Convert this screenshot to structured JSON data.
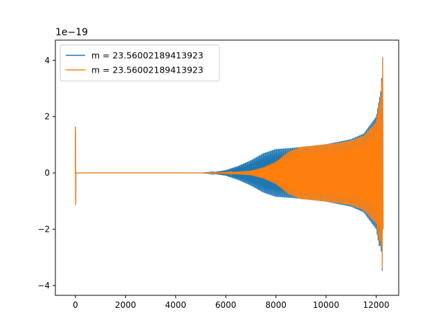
{
  "chart_data": {
    "type": "line",
    "title": "",
    "xlabel": "",
    "ylabel": "",
    "y_scale_label": "1e−19",
    "xlim": [
      -800,
      12900
    ],
    "ylim": [
      -4.35,
      4.72
    ],
    "x_ticks": [
      0,
      2000,
      4000,
      6000,
      8000,
      10000,
      12000
    ],
    "x_tick_labels": [
      "0",
      "2000",
      "4000",
      "6000",
      "8000",
      "10000",
      "12000"
    ],
    "y_ticks": [
      -4,
      -2,
      0,
      2,
      4
    ],
    "y_tick_labels": [
      "−4",
      "−2",
      "0",
      "2",
      "4"
    ],
    "grid": false,
    "legend_position": "upper-left",
    "series": [
      {
        "name": "m = 23.56002189413923",
        "color": "#1f77b4",
        "envelope": [
          [
            0,
            0.0
          ],
          [
            5000,
            0.0
          ],
          [
            5500,
            0.03
          ],
          [
            6000,
            0.1
          ],
          [
            6500,
            0.25
          ],
          [
            7000,
            0.45
          ],
          [
            7500,
            0.7
          ],
          [
            8000,
            0.85
          ],
          [
            8500,
            0.88
          ],
          [
            9000,
            0.92
          ],
          [
            10000,
            1.02
          ],
          [
            11000,
            1.2
          ],
          [
            11500,
            1.4
          ],
          [
            12000,
            2.0
          ],
          [
            12200,
            3.0
          ],
          [
            12270,
            4.3
          ],
          [
            12290,
            0.0
          ]
        ],
        "initial_spike": {
          "x": 0,
          "max": 1.65,
          "min": -1.15
        }
      },
      {
        "name": "m = 23.56002189413923",
        "color": "#ff7f0e",
        "envelope": [
          [
            0,
            0.0
          ],
          [
            5000,
            0.0
          ],
          [
            6000,
            0.02
          ],
          [
            7000,
            0.08
          ],
          [
            7500,
            0.2
          ],
          [
            8000,
            0.4
          ],
          [
            8500,
            0.75
          ],
          [
            9000,
            0.93
          ],
          [
            9500,
            0.97
          ],
          [
            10000,
            1.02
          ],
          [
            10500,
            1.07
          ],
          [
            11000,
            1.15
          ],
          [
            11500,
            1.32
          ],
          [
            12000,
            1.8
          ],
          [
            12200,
            2.8
          ],
          [
            12270,
            4.3
          ],
          [
            12290,
            0.0
          ]
        ],
        "initial_spike": {
          "x": 0,
          "max": 1.65,
          "min": -1.15
        }
      }
    ]
  }
}
